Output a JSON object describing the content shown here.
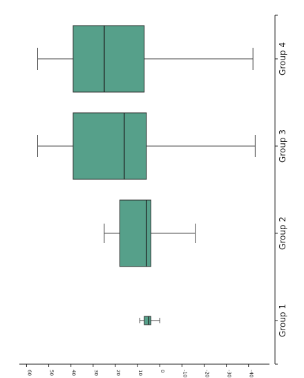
{
  "chart_data": {
    "type": "box",
    "orientation": "horizontal-rotated",
    "categories": [
      "Group 1",
      "Group 2",
      "Group 3",
      "Group 4"
    ],
    "boxes": [
      {
        "category": "Group 1",
        "whisker_low": 0,
        "q1": 4,
        "median": 5,
        "q3": 7,
        "whisker_high": 9
      },
      {
        "category": "Group 2",
        "whisker_low": -16,
        "q1": 4,
        "median": 6,
        "q3": 18,
        "whisker_high": 25
      },
      {
        "category": "Group 3",
        "whisker_low": -43,
        "q1": 6,
        "median": 16,
        "q3": 39,
        "whisker_high": 55
      },
      {
        "category": "Group 4",
        "whisker_low": -42,
        "q1": 7,
        "median": 25,
        "q3": 39,
        "whisker_high": 55
      }
    ],
    "value_axis": {
      "ticks": [
        60,
        50,
        40,
        30,
        20,
        10,
        0,
        -10,
        -20,
        -30,
        -40
      ],
      "tick_labels": [
        "60",
        "50",
        "40",
        "30",
        "20",
        "10",
        "0",
        "-10",
        "-20",
        "-30",
        "-40"
      ],
      "range": [
        62,
        -46
      ]
    },
    "box_color": "#56a08a",
    "edge_color": "#2b2b2b",
    "title": "",
    "xlabel": "",
    "ylabel": ""
  }
}
